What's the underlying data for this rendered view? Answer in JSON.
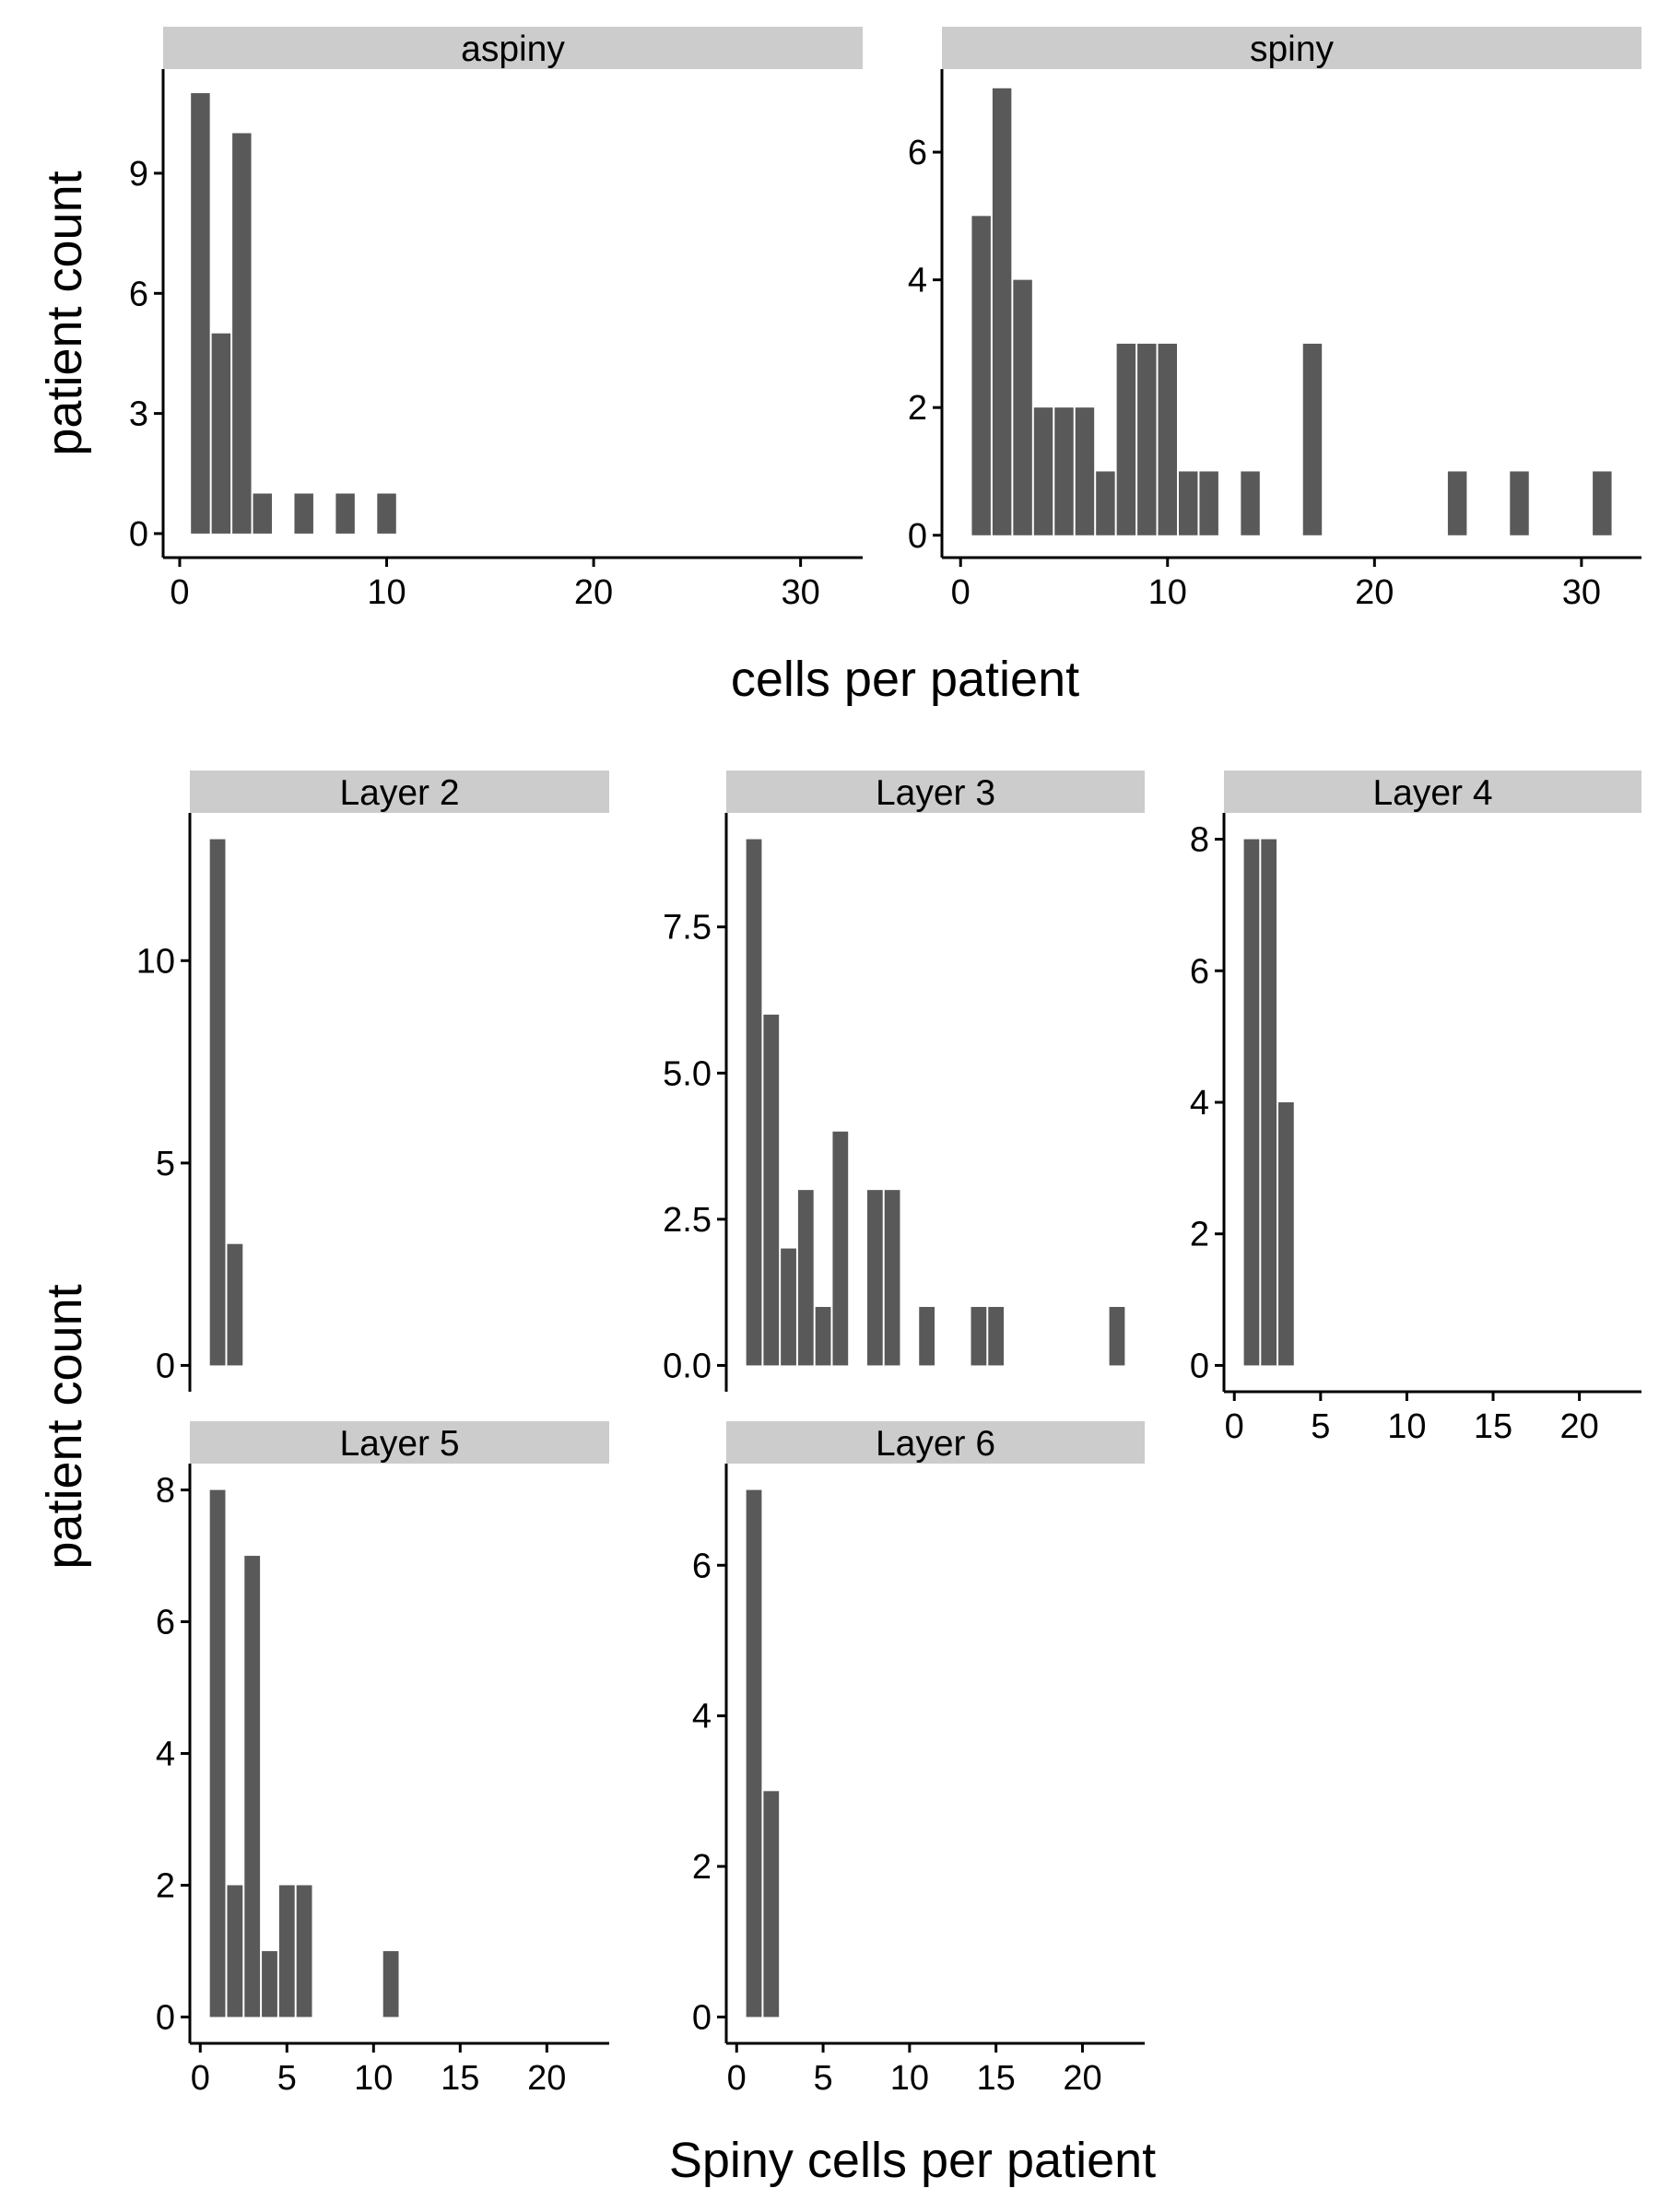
{
  "colors": {
    "bar": "#595959",
    "strip": "#cccccc",
    "axis": "#000000",
    "background": "#ffffff"
  },
  "chart_data": [
    {
      "type": "bar",
      "group": "top",
      "panel_title": "aspiny",
      "x": [
        1,
        2,
        3,
        4,
        6,
        8,
        10
      ],
      "values": [
        11,
        5,
        10,
        1,
        1,
        1,
        1
      ],
      "xlim": [
        -0.8,
        33.0
      ],
      "ylim": [
        -0.6,
        11.6
      ],
      "xticks": [
        0,
        10,
        20,
        30
      ],
      "xtick_labels": [
        "0",
        "10",
        "20",
        "30"
      ],
      "yticks": [
        0,
        3,
        6,
        9
      ],
      "ytick_labels": [
        "0",
        "3",
        "6",
        "9"
      ]
    },
    {
      "type": "bar",
      "group": "top",
      "panel_title": "spiny",
      "x": [
        1,
        2,
        3,
        4,
        5,
        6,
        7,
        8,
        9,
        10,
        11,
        12,
        14,
        17,
        24,
        27,
        31
      ],
      "values": [
        5,
        7,
        4,
        2,
        2,
        2,
        1,
        3,
        3,
        3,
        1,
        1,
        1,
        3,
        1,
        1,
        1
      ],
      "xlim": [
        -0.9,
        32.9
      ],
      "ylim": [
        -0.35,
        7.3
      ],
      "xticks": [
        0,
        10,
        20,
        30
      ],
      "xtick_labels": [
        "0",
        "10",
        "20",
        "30"
      ],
      "yticks": [
        0,
        2,
        4,
        6
      ],
      "ytick_labels": [
        "0",
        "2",
        "4",
        "6"
      ]
    },
    {
      "type": "bar",
      "group": "bottom",
      "panel_title": "Layer 2",
      "x": [
        1,
        2
      ],
      "values": [
        13,
        3
      ],
      "xlim": [
        -0.6,
        23.6
      ],
      "ylim": [
        -0.65,
        13.65
      ],
      "xticks": [
        0,
        5,
        10,
        15,
        20
      ],
      "xtick_labels": [
        "0",
        "5",
        "10",
        "15",
        "20"
      ],
      "yticks": [
        0,
        5,
        10
      ],
      "ytick_labels": [
        "0",
        "5",
        "10"
      ]
    },
    {
      "type": "bar",
      "group": "bottom",
      "panel_title": "Layer 3",
      "x": [
        1,
        2,
        3,
        4,
        5,
        6,
        8,
        9,
        11,
        14,
        15,
        22
      ],
      "values": [
        9,
        6,
        2,
        3,
        1,
        4,
        3,
        3,
        1,
        1,
        1,
        1
      ],
      "xlim": [
        -0.6,
        23.6
      ],
      "ylim": [
        -0.45,
        9.45
      ],
      "xticks": [
        0,
        5,
        10,
        15,
        20
      ],
      "xtick_labels": [
        "0",
        "5",
        "10",
        "15",
        "20"
      ],
      "yticks": [
        0,
        2.5,
        5,
        7.5
      ],
      "ytick_labels": [
        "0.0",
        "2.5",
        "5.0",
        "7.5"
      ]
    },
    {
      "type": "bar",
      "group": "bottom",
      "panel_title": "Layer 4",
      "x": [
        1,
        2,
        3
      ],
      "values": [
        8,
        8,
        4
      ],
      "xlim": [
        -0.6,
        23.6
      ],
      "ylim": [
        -0.4,
        8.4
      ],
      "xticks": [
        0,
        5,
        10,
        15,
        20
      ],
      "xtick_labels": [
        "0",
        "5",
        "10",
        "15",
        "20"
      ],
      "yticks": [
        0,
        2,
        4,
        6,
        8
      ],
      "ytick_labels": [
        "0",
        "2",
        "4",
        "6",
        "8"
      ]
    },
    {
      "type": "bar",
      "group": "bottom",
      "panel_title": "Layer 5",
      "x": [
        1,
        2,
        3,
        4,
        5,
        6,
        11
      ],
      "values": [
        8,
        2,
        7,
        1,
        2,
        2,
        1
      ],
      "xlim": [
        -0.6,
        23.6
      ],
      "ylim": [
        -0.4,
        8.4
      ],
      "xticks": [
        0,
        5,
        10,
        15,
        20
      ],
      "xtick_labels": [
        "0",
        "5",
        "10",
        "15",
        "20"
      ],
      "yticks": [
        0,
        2,
        4,
        6,
        8
      ],
      "ytick_labels": [
        "0",
        "2",
        "4",
        "6",
        "8"
      ]
    },
    {
      "type": "bar",
      "group": "bottom",
      "panel_title": "Layer 6",
      "x": [
        1,
        2
      ],
      "values": [
        7,
        3
      ],
      "xlim": [
        -0.6,
        23.6
      ],
      "ylim": [
        -0.35,
        7.35
      ],
      "xticks": [
        0,
        5,
        10,
        15,
        20
      ],
      "xtick_labels": [
        "0",
        "5",
        "10",
        "15",
        "20"
      ],
      "yticks": [
        0,
        2,
        4,
        6
      ],
      "ytick_labels": [
        "0",
        "2",
        "4",
        "6"
      ]
    }
  ],
  "top_xlabel": "cells per patient",
  "top_ylabel": "patient count",
  "bottom_xlabel": "Spiny cells per patient",
  "bottom_ylabel": "patient count"
}
